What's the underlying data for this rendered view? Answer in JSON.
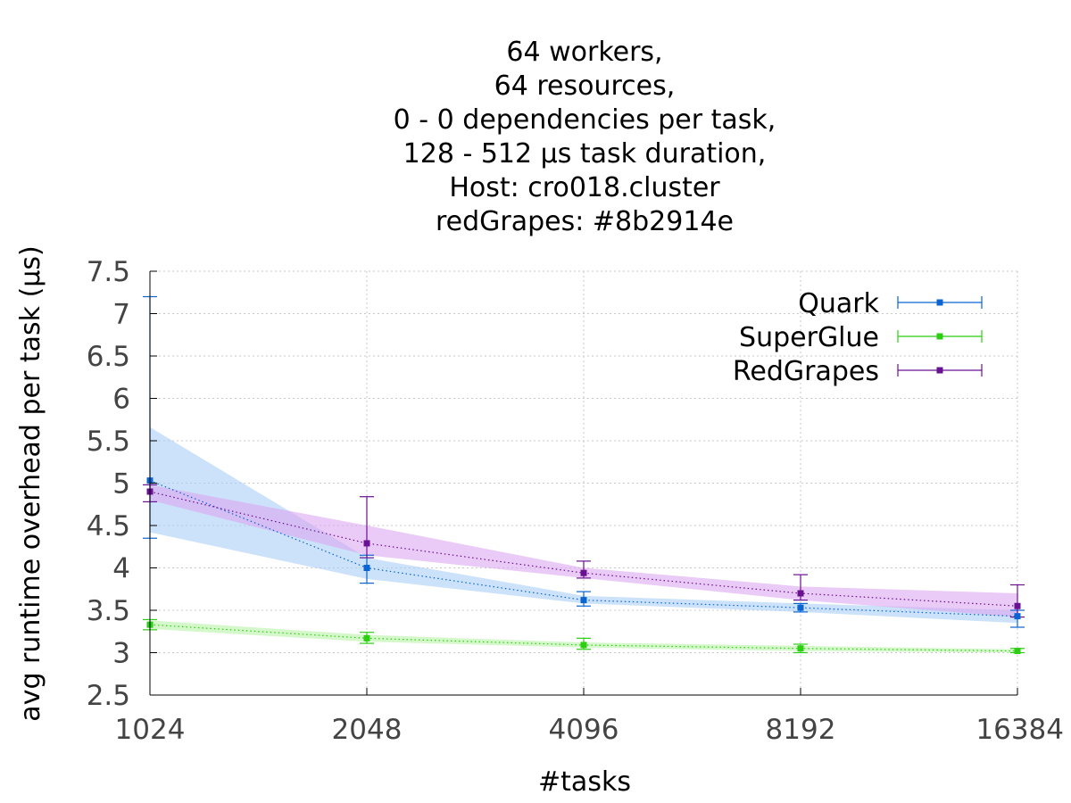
{
  "chart_data": {
    "type": "line",
    "title_lines": [
      "64 workers,",
      "64 resources,",
      "0 - 0 dependencies per task,",
      "128 - 512 μs task duration,",
      "Host: cro018.cluster",
      "redGrapes: #8b2914e"
    ],
    "xlabel": "#tasks",
    "ylabel": "avg runtime overhead per task (μs)",
    "x_scale": "log2",
    "x": [
      1024,
      2048,
      4096,
      8192,
      16384
    ],
    "x_tick_labels": [
      "1024",
      "2048",
      "4096",
      "8192",
      "16384"
    ],
    "ylim": [
      2.5,
      7.5
    ],
    "y_ticks": [
      2.5,
      3,
      3.5,
      4,
      4.5,
      5,
      5.5,
      6,
      6.5,
      7,
      7.5
    ],
    "y_tick_labels": [
      "2.5",
      "3",
      "3.5",
      "4",
      "4.5",
      "5",
      "5.5",
      "6",
      "6.5",
      "7",
      "7.5"
    ],
    "grid": true,
    "legend_position": "top-right",
    "series": [
      {
        "name": "Quark",
        "color": "#0a64d2",
        "band_color": "#a8cff7",
        "values": [
          5.03,
          4.0,
          3.62,
          3.53,
          3.43
        ],
        "err_low": [
          4.35,
          3.82,
          3.55,
          3.48,
          3.3
        ],
        "err_high": [
          7.2,
          4.15,
          3.72,
          3.58,
          3.5
        ],
        "band_low": [
          4.42,
          3.87,
          3.58,
          3.48,
          3.35
        ],
        "band_high": [
          5.66,
          4.12,
          3.67,
          3.58,
          3.5
        ]
      },
      {
        "name": "SuperGlue",
        "color": "#2bce11",
        "band_color": "#b8f3a6",
        "values": [
          3.33,
          3.17,
          3.09,
          3.05,
          3.02
        ],
        "err_low": [
          3.27,
          3.11,
          3.04,
          3.0,
          3.0
        ],
        "err_high": [
          3.39,
          3.24,
          3.17,
          3.1,
          3.05
        ],
        "band_low": [
          3.28,
          3.13,
          3.06,
          3.02,
          3.0
        ],
        "band_high": [
          3.38,
          3.21,
          3.12,
          3.08,
          3.04
        ]
      },
      {
        "name": "RedGrapes",
        "color": "#6a1193",
        "band_color": "#dca6f0",
        "values": [
          4.9,
          4.29,
          3.94,
          3.7,
          3.55
        ],
        "err_low": [
          4.78,
          4.12,
          3.88,
          3.62,
          3.42
        ],
        "err_high": [
          4.98,
          4.84,
          4.08,
          3.92,
          3.8
        ],
        "band_low": [
          4.8,
          4.15,
          3.88,
          3.62,
          3.42
        ],
        "band_high": [
          4.98,
          4.5,
          4.0,
          3.78,
          3.7
        ]
      }
    ]
  }
}
